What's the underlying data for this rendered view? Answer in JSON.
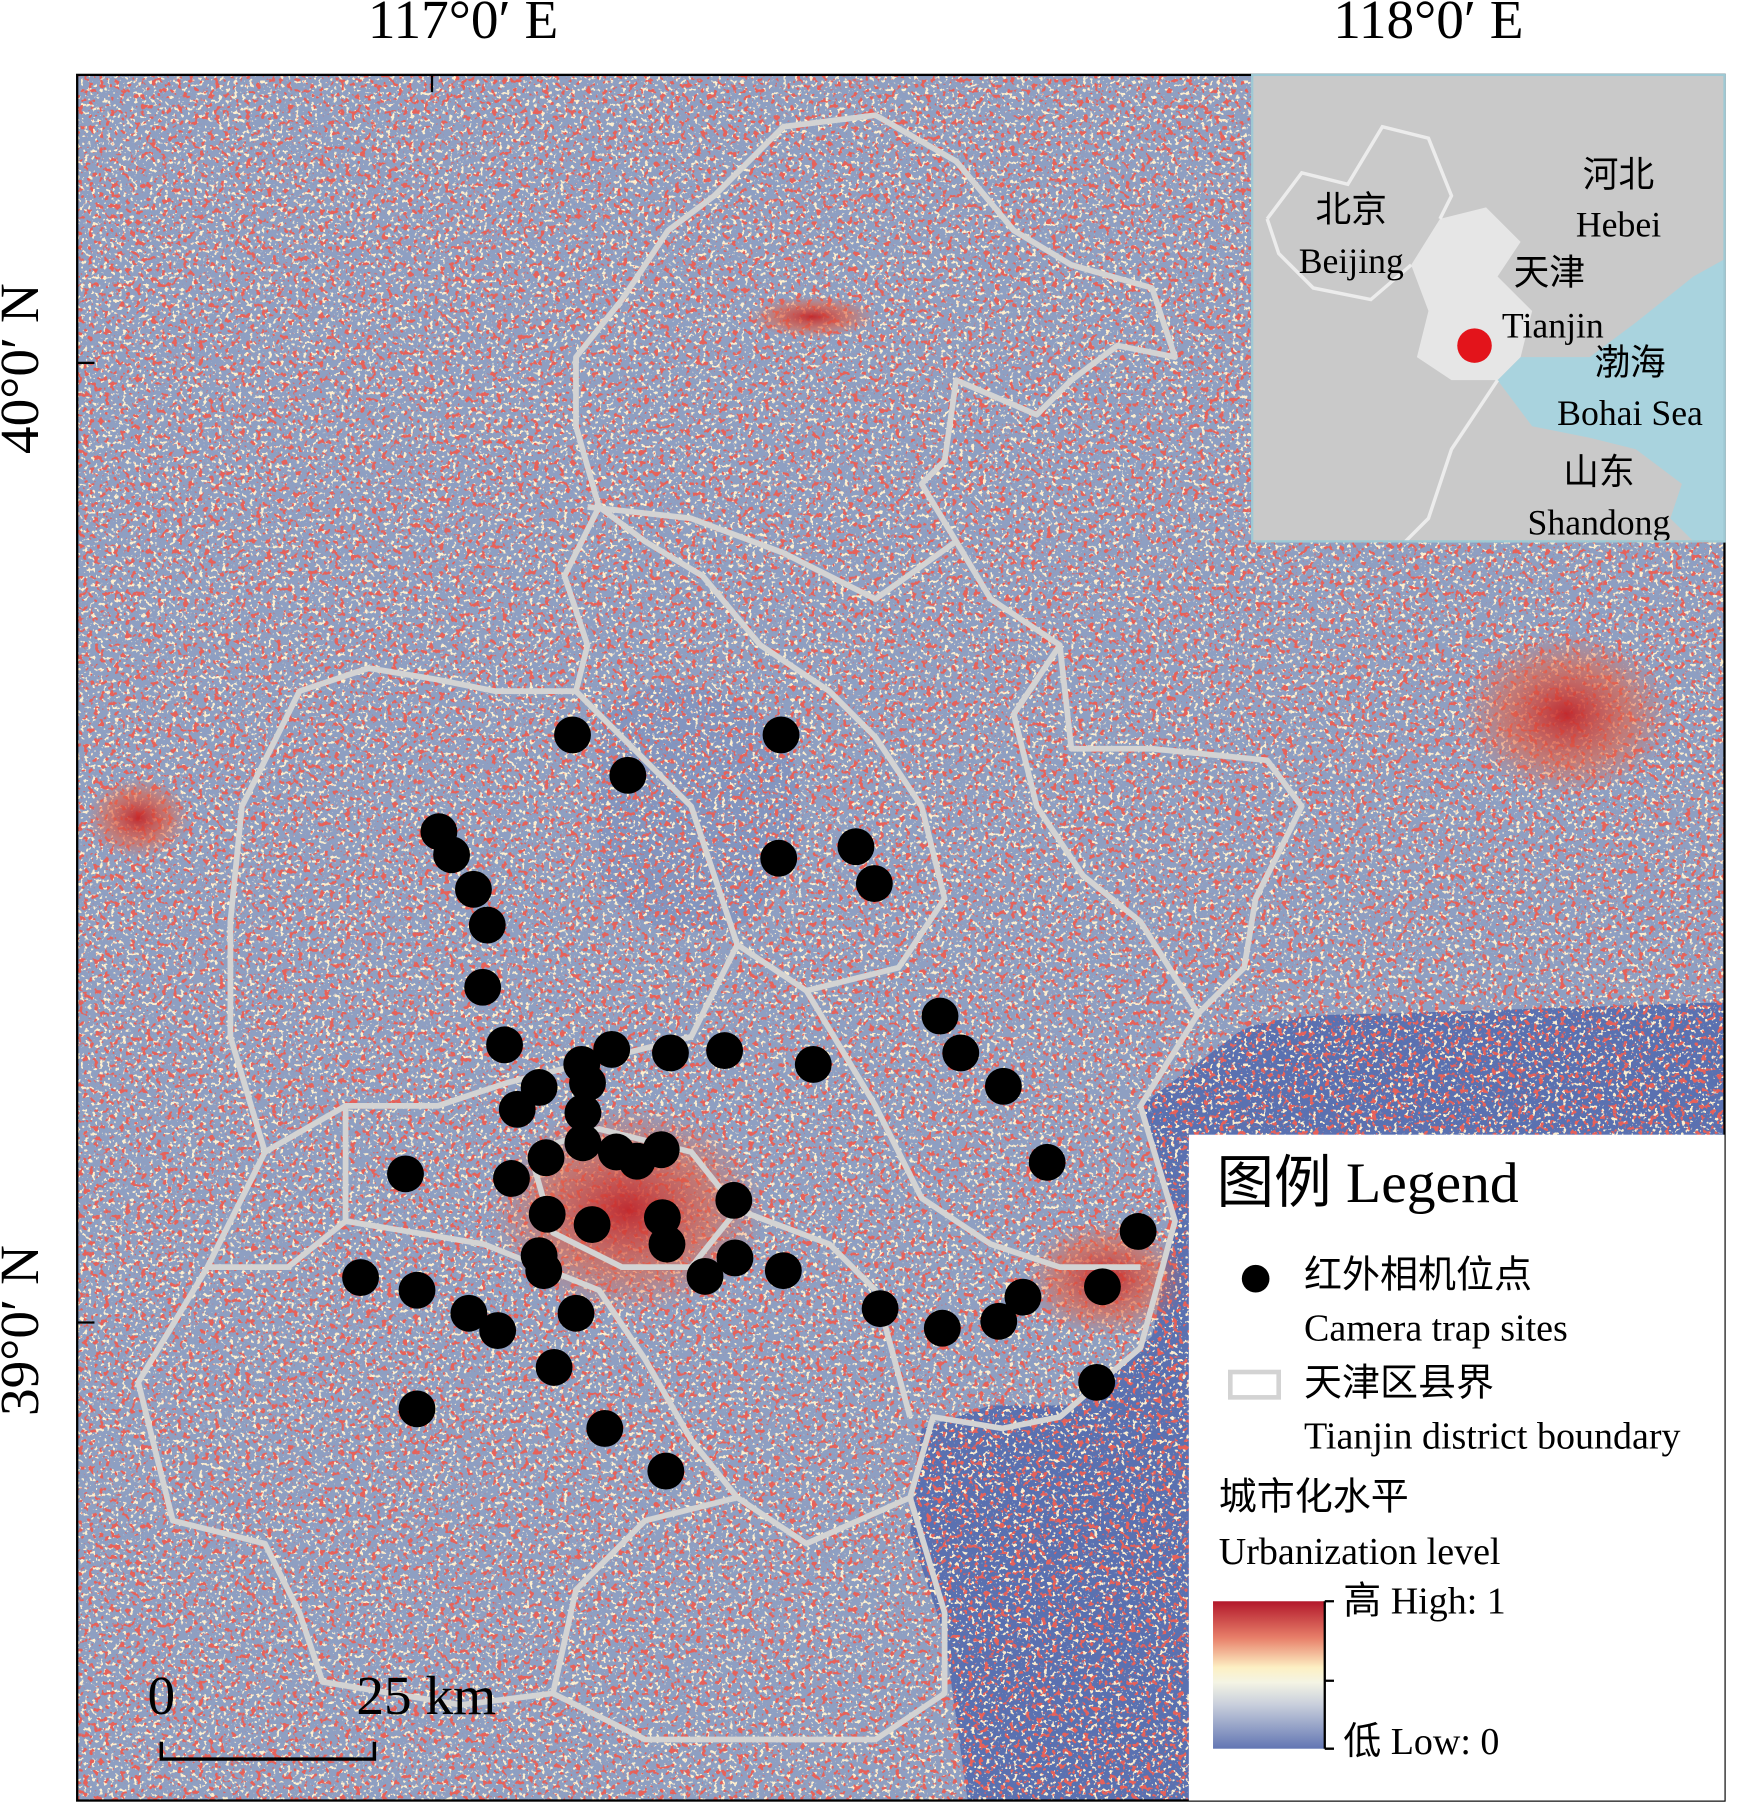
{
  "map": {
    "x_labels": [
      "117°0′ E",
      "118°0′ E"
    ],
    "y_labels": [
      "40°0′ N",
      "39°0′ N"
    ],
    "inset": {
      "labels": [
        "河北",
        "Hebei",
        "北京",
        "Beijing",
        "天津",
        "Tianjin",
        "渤海",
        "Bohai Sea",
        "山东",
        "Shandong"
      ]
    },
    "scale_bar": {
      "start": "0",
      "end": "25 km"
    },
    "legend": {
      "title": "图例 Legend",
      "items": [
        {
          "zh": "红外相机位点",
          "en": "Camera trap sites"
        },
        {
          "zh": "天津区县界",
          "en": "Tianjin district boundary"
        }
      ],
      "ramp": {
        "zh": "城市化水平",
        "en": "Urbanization level",
        "high": "高 High: 1",
        "low": "低 Low: 0"
      }
    }
  }
}
